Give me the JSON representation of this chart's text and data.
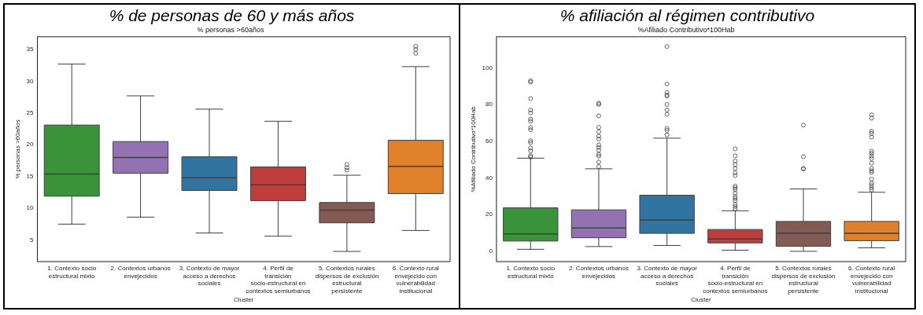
{
  "chart_data": [
    {
      "type": "box",
      "title": "% de personas de 60 y más años",
      "subtitle": "% personas >60años",
      "xlabel": "Cluster",
      "ylabel": "% personas >60años",
      "categories": [
        "1. Contexto socio estructural mixto",
        "2. Contextos urbanos envejecidos",
        "3. Contexto de mayor acceso a derechos sociales",
        "4. Perfil de transición socio-estructural en contextos semiurbanos",
        "5. Contextos rurales dispersos de exclusión estructural persistente",
        "6. Contexto rural envejecido con vulnerabilidad institucional"
      ],
      "colors": [
        "#3a923a",
        "#9372b2",
        "#3274a1",
        "#c03d3e",
        "#845b53",
        "#e1812c"
      ],
      "boxes": [
        {
          "low": 7.5,
          "q1": 11.9,
          "median": 15.4,
          "q3": 23.1,
          "high": 32.7
        },
        {
          "low": 8.6,
          "q1": 15.5,
          "median": 18.0,
          "q3": 20.5,
          "high": 27.7
        },
        {
          "low": 6.1,
          "q1": 12.8,
          "median": 14.8,
          "q3": 18.1,
          "high": 25.6
        },
        {
          "low": 5.6,
          "q1": 11.2,
          "median": 13.7,
          "q3": 16.5,
          "high": 23.7
        },
        {
          "low": 3.2,
          "q1": 7.7,
          "median": 9.7,
          "q3": 10.9,
          "high": 15.2,
          "outliers": [
            16.0,
            16.4,
            16.9
          ]
        },
        {
          "low": 6.5,
          "q1": 12.3,
          "median": 16.6,
          "q3": 20.7,
          "high": 32.3,
          "outliers": [
            34.4,
            35.0,
            35.5
          ]
        }
      ],
      "ylim": [
        1.6,
        37
      ],
      "yticks": [
        5,
        10,
        15,
        20,
        25,
        30,
        35
      ],
      "grid": false,
      "legend": false
    },
    {
      "type": "box",
      "title": "% afiliación al régimen contributivo",
      "subtitle": "%Afiliado Contributivo*100Hab",
      "xlabel": "Cluster",
      "ylabel": "%Afiliado Contributivo*100Hab",
      "categories": [
        "1. Contexto socio estructural mixto",
        "2. Contextos urbanos envejecidos",
        "3. Contexto de mayor acceso a derechos sociales",
        "4. Perfil de transición socio-estructural en contextos semiurbanos",
        "5. Contextos rurales dispersos de exclusión estructural persistente",
        "6. Contexto rural envejecido con vulnerabilidad institucional"
      ],
      "colors": [
        "#3a923a",
        "#9372b2",
        "#3274a1",
        "#c03d3e",
        "#845b53",
        "#e1812c"
      ],
      "boxes": [
        {
          "low": 1.1,
          "q1": 5.6,
          "median": 9.5,
          "q3": 23.7,
          "high": 50.8,
          "outliers": [
            51.4,
            52.1,
            54.8,
            56.3,
            59.3,
            60.3,
            66.3,
            67.5,
            71,
            72.1,
            75.5,
            77.1,
            83.3,
            92.3,
            93
          ]
        },
        {
          "low": 2.6,
          "q1": 7.4,
          "median": 12.7,
          "q3": 22.6,
          "high": 45.0,
          "outliers": [
            46.2,
            48.7,
            51.9,
            52.9,
            55.1,
            56.7,
            58,
            61.2,
            62.8,
            65.2,
            67.6,
            73.9,
            80.1,
            80.8
          ]
        },
        {
          "low": 3.2,
          "q1": 9.8,
          "median": 17.1,
          "q3": 30.6,
          "high": 61.7,
          "outliers": [
            63.5,
            66,
            67,
            74.7,
            77.1,
            80.1,
            84.6,
            85.3,
            86.7,
            91.3,
            111.7
          ]
        },
        {
          "low": 0.6,
          "q1": 4.6,
          "median": 6.7,
          "q3": 11.9,
          "high": 22.1,
          "outliers": [
            23.2,
            24.4,
            25.6,
            27.6,
            28.8,
            29.8,
            31.6,
            33.7,
            34.6,
            35.6,
            41.3,
            42.8,
            45.2,
            47.3,
            49.2,
            52.1,
            55.9
          ]
        },
        {
          "low": 0,
          "q1": 2.7,
          "median": 9.9,
          "q3": 16.3,
          "high": 34.0,
          "outliers": [
            44.9,
            45.2,
            51.6,
            68.8
          ]
        },
        {
          "low": 1.9,
          "q1": 5.8,
          "median": 9.8,
          "q3": 16.3,
          "high": 32.2,
          "outliers": [
            33.5,
            34.6,
            35.9,
            37.2,
            39.3,
            43,
            43.9,
            45.2,
            48.1,
            50.6,
            51.9,
            53.5,
            54.6,
            62.3,
            64.3,
            65.5,
            72.6,
            74.4
          ]
        }
      ],
      "ylim": [
        -5.6,
        117
      ],
      "yticks": [
        0,
        20,
        40,
        60,
        80,
        100
      ],
      "grid": false,
      "legend": false
    }
  ]
}
